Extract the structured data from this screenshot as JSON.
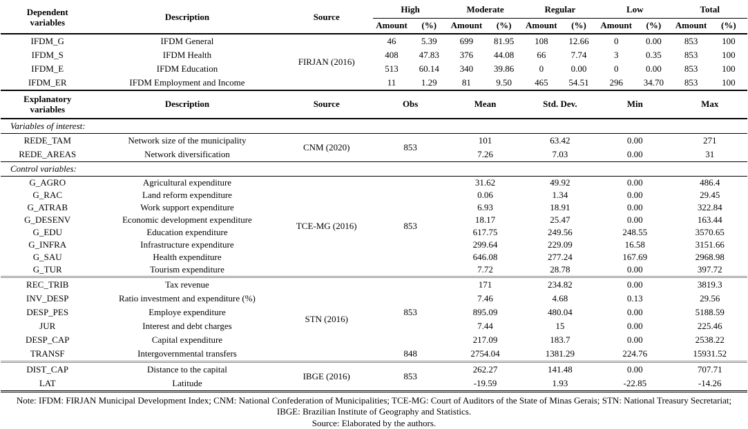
{
  "header_top": {
    "dependent_l1": "Dependent",
    "dependent_l2": "variables",
    "description": "Description",
    "source": "Source",
    "groups": [
      "High",
      "Moderate",
      "Regular",
      "Low",
      "Total"
    ],
    "amount": "Amount",
    "pct": "(%)"
  },
  "dependent": {
    "source": "FIRJAN (2016)",
    "rows": [
      {
        "var": "IFDM_G",
        "desc": "IFDM General",
        "vals": [
          "46",
          "5.39",
          "699",
          "81.95",
          "108",
          "12.66",
          "0",
          "0.00",
          "853",
          "100"
        ]
      },
      {
        "var": "IFDM_S",
        "desc": "IFDM Health",
        "vals": [
          "408",
          "47.83",
          "376",
          "44.08",
          "66",
          "7.74",
          "3",
          "0.35",
          "853",
          "100"
        ]
      },
      {
        "var": "IFDM_E",
        "desc": "IFDM Education",
        "vals": [
          "513",
          "60.14",
          "340",
          "39.86",
          "0",
          "0.00",
          "0",
          "0.00",
          "853",
          "100"
        ]
      },
      {
        "var": "IFDM_ER",
        "desc": "IFDM Employment and Income",
        "vals": [
          "11",
          "1.29",
          "81",
          "9.50",
          "465",
          "54.51",
          "296",
          "34.70",
          "853",
          "100"
        ]
      }
    ]
  },
  "header_mid": {
    "explanatory_l1": "Explanatory",
    "explanatory_l2": "variables",
    "description": "Description",
    "source": "Source",
    "obs": "Obs",
    "mean": "Mean",
    "std": "Std. Dev.",
    "min": "Min",
    "max": "Max"
  },
  "section_labels": {
    "interest": "Variables of interest:",
    "control": "Control variables:"
  },
  "interest": {
    "source": "CNM (2020)",
    "obs": "853",
    "rows": [
      {
        "var": "REDE_TAM",
        "desc": "Network size of the municipality",
        "mean": "101",
        "std": "63.42",
        "min": "0.00",
        "max": "271"
      },
      {
        "var": "REDE_AREAS",
        "desc": "Network diversification",
        "mean": "7.26",
        "std": "7.03",
        "min": "0.00",
        "max": "31"
      }
    ]
  },
  "tce": {
    "source": "TCE-MG (2016)",
    "obs": "853",
    "rows": [
      {
        "var": "G_AGRO",
        "desc": "Agricultural expenditure",
        "mean": "31.62",
        "std": "49.92",
        "min": "0.00",
        "max": "486.4"
      },
      {
        "var": "G_RAC",
        "desc": "Land reform expenditure",
        "mean": "0.06",
        "std": "1.34",
        "min": "0.00",
        "max": "29.45"
      },
      {
        "var": "G_ATRAB",
        "desc": "Work support expenditure",
        "mean": "6.93",
        "std": "18.91",
        "min": "0.00",
        "max": "322.84"
      },
      {
        "var": "G_DESENV",
        "desc": "Economic development expenditure",
        "mean": "18.17",
        "std": "25.47",
        "min": "0.00",
        "max": "163.44"
      },
      {
        "var": "G_EDU",
        "desc": "Education expenditure",
        "mean": "617.75",
        "std": "249.56",
        "min": "248.55",
        "max": "3570.65"
      },
      {
        "var": "G_INFRA",
        "desc": "Infrastructure expenditure",
        "mean": "299.64",
        "std": "229.09",
        "min": "16.58",
        "max": "3151.66"
      },
      {
        "var": "G_SAU",
        "desc": "Health expenditure",
        "mean": "646.08",
        "std": "277.24",
        "min": "167.69",
        "max": "2968.98"
      },
      {
        "var": "G_TUR",
        "desc": "Tourism expenditure",
        "mean": "7.72",
        "std": "28.78",
        "min": "0.00",
        "max": "397.72"
      }
    ]
  },
  "stn": {
    "source": "STN (2016)",
    "obs_main": "853",
    "rows": [
      {
        "var": "REC_TRIB",
        "desc": "Tax revenue",
        "mean": "171",
        "std": "234.82",
        "min": "0.00",
        "max": "3819.3"
      },
      {
        "var": "INV_DESP",
        "desc": "Ratio investment and expenditure (%)",
        "mean": "7.46",
        "std": "4.68",
        "min": "0.13",
        "max": "29.56"
      },
      {
        "var": "DESP_PES",
        "desc": "Employe expenditure",
        "mean": "895.09",
        "std": "480.04",
        "min": "0.00",
        "max": "5188.59"
      },
      {
        "var": "JUR",
        "desc": "Interest and debt charges",
        "mean": "7.44",
        "std": "15",
        "min": "0.00",
        "max": "225.46"
      },
      {
        "var": "DESP_CAP",
        "desc": "Capital expenditure",
        "mean": "217.09",
        "std": "183.7",
        "min": "0.00",
        "max": "2538.22"
      }
    ],
    "transf": {
      "var": "TRANSF",
      "desc": "Intergovernmental transfers",
      "obs": "848",
      "mean": "2754.04",
      "std": "1381.29",
      "min": "224.76",
      "max": "15931.52"
    }
  },
  "ibge": {
    "source": "IBGE (2016)",
    "obs": "853",
    "rows": [
      {
        "var": "DIST_CAP",
        "desc": "Distance to the capital",
        "mean": "262.27",
        "std": "141.48",
        "min": "0.00",
        "max": "707.71"
      },
      {
        "var": "LAT",
        "desc": "Latitude",
        "mean": "-19.59",
        "std": "1.93",
        "min": "-22.85",
        "max": "-14.26"
      }
    ]
  },
  "notes": {
    "note": "Note: IFDM: FIRJAN Municipal Development Index; CNM: National Confederation of Municipalities; TCE-MG: Court of Auditors of the State of Minas Gerais; STN: National Treasury Secretariat; IBGE: Brazilian Institute of Geography and Statistics.",
    "source_note": "Source: Elaborated by the authors."
  }
}
